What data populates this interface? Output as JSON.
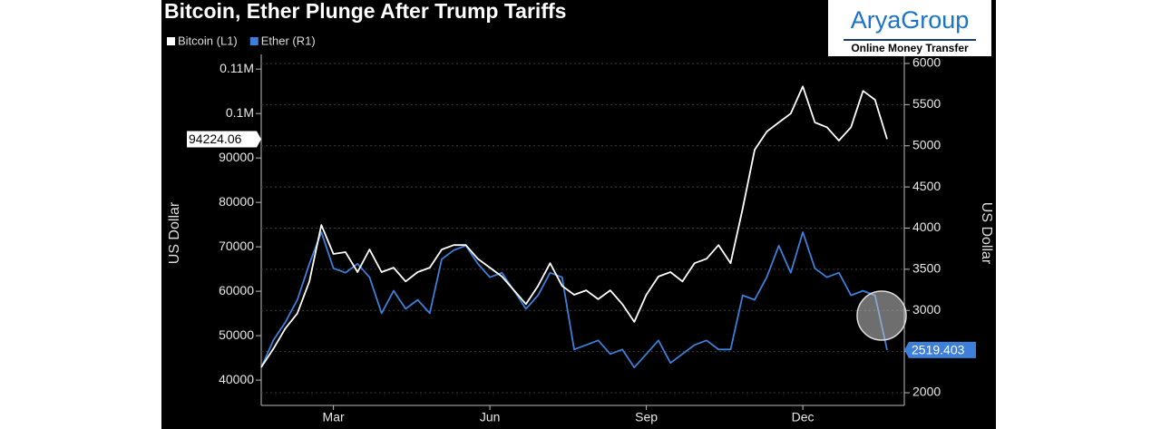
{
  "chart_data": {
    "type": "line",
    "title": "Bitcoin, Ether Plunge After Trump Tariffs",
    "y_label": "US Dollar",
    "y2_label": "US Dollar",
    "categories": [
      null,
      null,
      null,
      null,
      null,
      null,
      "Mar",
      null,
      null,
      null,
      null,
      null,
      null,
      null,
      null,
      null,
      null,
      null,
      null,
      "Jun",
      null,
      null,
      null,
      null,
      null,
      null,
      null,
      null,
      null,
      null,
      null,
      null,
      "Sep",
      null,
      null,
      null,
      null,
      null,
      null,
      null,
      null,
      null,
      null,
      null,
      null,
      "Dec",
      null,
      null,
      null,
      null,
      null,
      null,
      null
    ],
    "series": [
      {
        "name": "Bitcoin (L1)",
        "color": "#ffffff",
        "values": [
          42900,
          47000,
          51600,
          55000,
          62200,
          74900,
          68400,
          68800,
          64300,
          69400,
          64300,
          65300,
          62200,
          64300,
          65300,
          69400,
          70400,
          70400,
          67300,
          65300,
          63300,
          60200,
          57100,
          61200,
          66300,
          61200,
          59200,
          60200,
          58200,
          60200,
          57100,
          53100,
          59200,
          63300,
          64300,
          62200,
          66300,
          67300,
          70400,
          66300,
          78600,
          91800,
          95900,
          98000,
          100000,
          106100,
          98000,
          96900,
          93900,
          96900,
          105100,
          103100,
          94224.06
        ]
      },
      {
        "name": "Ether (R1)",
        "color": "#3d7fd9",
        "axis": "y2",
        "values": [
          2307,
          2636,
          2855,
          3129,
          3567,
          3951,
          3512,
          3458,
          3567,
          3403,
          2965,
          3239,
          3019,
          3129,
          2965,
          3622,
          3732,
          3786,
          3567,
          3403,
          3458,
          3239,
          3019,
          3184,
          3458,
          3403,
          2526,
          2581,
          2636,
          2471,
          2526,
          2307,
          2471,
          2636,
          2362,
          2471,
          2581,
          2636,
          2526,
          2526,
          3184,
          3129,
          3403,
          3786,
          3458,
          3951,
          3512,
          3403,
          3458,
          3184,
          3239,
          3184,
          2519.403
        ]
      }
    ],
    "ylim": [
      34300,
      113300
    ],
    "yticks": [
      40000,
      50000,
      60000,
      70000,
      80000,
      90000,
      {
        "value": 100000,
        "label": "0.1M"
      },
      {
        "value": 110000,
        "label": "0.11M"
      }
    ],
    "y2lim": [
      1846,
      6110
    ],
    "y2ticks": [
      2000,
      2500,
      3000,
      3500,
      4000,
      4500,
      5000,
      5500,
      6000
    ],
    "grid": true
  },
  "logo": {
    "name": "AryaGroup",
    "tagline": "Online Money Transfer"
  }
}
